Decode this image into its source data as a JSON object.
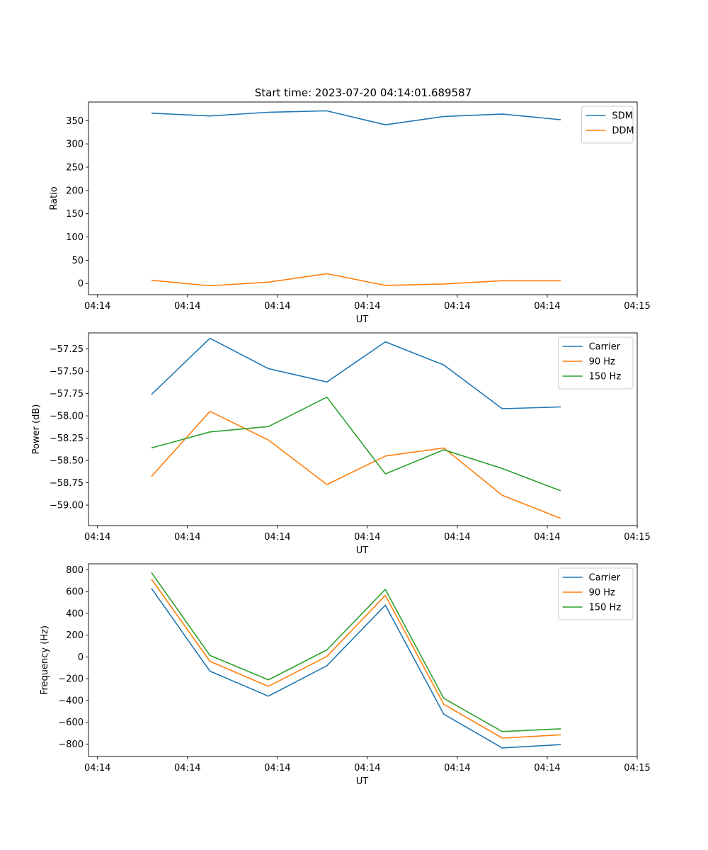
{
  "title": "Start time: 2023-07-20 04:14:01.689587",
  "colors": {
    "blue": "#1f77b4",
    "orange": "#ff7f0e",
    "green": "#2ca02c"
  },
  "chart_data": [
    {
      "type": "line",
      "title": "Start time: 2023-07-20 04:14:01.689587",
      "xlabel": "UT",
      "ylabel": "Ratio",
      "x": [
        0.6,
        1.25,
        1.9,
        2.55,
        3.2,
        3.85,
        4.5,
        5.15
      ],
      "xlim": [
        -0.1,
        6.0
      ],
      "xticks": [
        0,
        1,
        2,
        3,
        4,
        5,
        6
      ],
      "xticklabels": [
        "04:14",
        "04:14",
        "04:14",
        "04:14",
        "04:14",
        "04:14",
        "04:15"
      ],
      "ylim": [
        -24,
        390
      ],
      "yticks": [
        0,
        50,
        100,
        150,
        200,
        250,
        300,
        350
      ],
      "yticklabels": [
        "0",
        "50",
        "100",
        "150",
        "200",
        "250",
        "300",
        "350"
      ],
      "legend_position": "top-right",
      "series": [
        {
          "name": "SDM",
          "color": "#1f77b4",
          "values": [
            366,
            360,
            368,
            371,
            341,
            359,
            364,
            352
          ]
        },
        {
          "name": "DDM",
          "color": "#ff7f0e",
          "values": [
            7,
            -5,
            3,
            21,
            -4,
            -1,
            6,
            6
          ]
        }
      ]
    },
    {
      "type": "line",
      "xlabel": "UT",
      "ylabel": "Power (dB)",
      "x": [
        0.6,
        1.25,
        1.9,
        2.55,
        3.2,
        3.85,
        4.5,
        5.15
      ],
      "xlim": [
        -0.1,
        6.0
      ],
      "xticks": [
        0,
        1,
        2,
        3,
        4,
        5,
        6
      ],
      "xticklabels": [
        "04:14",
        "04:14",
        "04:14",
        "04:14",
        "04:14",
        "04:14",
        "04:15"
      ],
      "ylim": [
        -59.23,
        -57.07
      ],
      "yticks": [
        -59.0,
        -58.75,
        -58.5,
        -58.25,
        -58.0,
        -57.75,
        -57.5,
        -57.25
      ],
      "yticklabels": [
        "−59.00",
        "−58.75",
        "−58.50",
        "−58.25",
        "−58.00",
        "−57.75",
        "−57.50",
        "−57.25"
      ],
      "legend_position": "top-right",
      "series": [
        {
          "name": "Carrier",
          "color": "#1f77b4",
          "values": [
            -57.76,
            -57.13,
            -57.47,
            -57.62,
            -57.17,
            -57.43,
            -57.92,
            -57.9
          ]
        },
        {
          "name": "90 Hz",
          "color": "#ff7f0e",
          "values": [
            -58.68,
            -57.95,
            -58.27,
            -58.77,
            -58.45,
            -58.36,
            -58.89,
            -59.15
          ]
        },
        {
          "name": "150 Hz",
          "color": "#2ca02c",
          "values": [
            -58.36,
            -58.18,
            -58.12,
            -57.79,
            -58.65,
            -58.38,
            -58.59,
            -58.84
          ]
        }
      ]
    },
    {
      "type": "line",
      "xlabel": "UT",
      "ylabel": "Frequency (Hz)",
      "x": [
        0.6,
        1.25,
        1.9,
        2.55,
        3.2,
        3.85,
        4.5,
        5.15
      ],
      "xlim": [
        -0.1,
        6.0
      ],
      "xticks": [
        0,
        1,
        2,
        3,
        4,
        5,
        6
      ],
      "xticklabels": [
        "04:14",
        "04:14",
        "04:14",
        "04:14",
        "04:14",
        "04:14",
        "04:15"
      ],
      "ylim": [
        -914,
        855
      ],
      "yticks": [
        -800,
        -600,
        -400,
        -200,
        0,
        200,
        400,
        600,
        800
      ],
      "yticklabels": [
        "−800",
        "−600",
        "−400",
        "−200",
        "0",
        "200",
        "400",
        "600",
        "800"
      ],
      "legend_position": "top-right",
      "series": [
        {
          "name": "Carrier",
          "color": "#1f77b4",
          "values": [
            630,
            -130,
            -360,
            -80,
            475,
            -525,
            -835,
            -805
          ]
        },
        {
          "name": "90 Hz",
          "color": "#ff7f0e",
          "values": [
            715,
            -40,
            -270,
            5,
            565,
            -435,
            -745,
            -715
          ]
        },
        {
          "name": "150 Hz",
          "color": "#2ca02c",
          "values": [
            775,
            15,
            -210,
            65,
            620,
            -380,
            -685,
            -660
          ]
        }
      ]
    }
  ]
}
